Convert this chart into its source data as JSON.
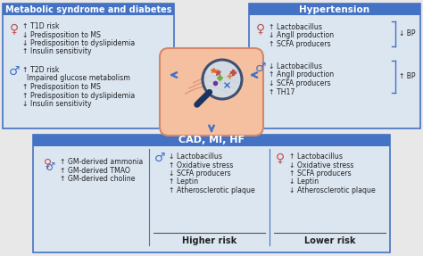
{
  "bg_color": "#e8e8e8",
  "box_header_color": "#4472c4",
  "box_bg_color": "#dce6f1",
  "box_border_color": "#4472c4",
  "title_text_color": "white",
  "body_text_color": "#222222",
  "female_color": "#c0504d",
  "male_color": "#4472c4",
  "arrow_color": "#4472c4",
  "box1_title": "Metabolic syndrome and diabetes",
  "box1_female_lines": [
    "↑ T1D risk",
    "↓ Predisposition to MS",
    "↓ Predisposition to dyslipidemia",
    "↑ Insulin sensitivity"
  ],
  "box1_male_lines": [
    "↑ T2D risk",
    "  Impaired glucose metabolism",
    "↑ Predisposition to MS",
    "↑ Predisposition to dyslipidemia",
    "↓ Insulin sensitivity"
  ],
  "box2_title": "Hypertension",
  "box2_female_lines": [
    "↑ Lactobacillus",
    "↓ AngII production",
    "↑ SCFA producers"
  ],
  "box2_female_result": "↓ BP",
  "box2_male_lines": [
    "↓ Lactobacillus",
    "↑ AngII production",
    "↓ SCFA producers",
    "↑ TH17"
  ],
  "box2_male_result": "↑ BP",
  "box3_title": "CAD, MI, HF",
  "box3_both_lines": [
    "↑ GM-derived ammonia",
    "↑ GM-derived TMAO",
    "↑ GM-derived choline"
  ],
  "box3_male_lines": [
    "↓ Lactobacillus",
    "↑ Oxidative stress",
    "↓ SCFA producers",
    "↑ Leptin",
    "↑ Atherosclerotic plaque"
  ],
  "box3_male_label": "Higher risk",
  "box3_female_lines": [
    "↑ Lactobacillus",
    "↓ Oxidative stress",
    "↑ SCFA producers",
    "↓ Leptin",
    "↓ Atherosclerotic plaque"
  ],
  "box3_female_label": "Lower risk",
  "fig_width": 4.74,
  "fig_height": 2.87,
  "dpi": 100
}
